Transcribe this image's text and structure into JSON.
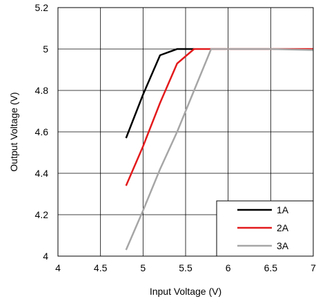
{
  "chart_data": {
    "type": "line",
    "title": "",
    "xlabel": "Input Voltage (V)",
    "ylabel": "Output Voltage (V)",
    "xlim": [
      4,
      7
    ],
    "ylim": [
      4,
      5.2
    ],
    "x_ticks": [
      "4",
      "4.5",
      "5",
      "5.5",
      "6",
      "6.5",
      "7"
    ],
    "y_ticks": [
      "4",
      "4.2",
      "4.4",
      "4.6",
      "4.8",
      "5",
      "5.2"
    ],
    "grid": true,
    "legend": "bottom-right",
    "series": [
      {
        "name": "1A",
        "color": "#000000",
        "x": [
          4.8,
          5.0,
          5.2,
          5.4,
          5.6
        ],
        "y": [
          4.57,
          4.78,
          4.97,
          5.0,
          5.0
        ]
      },
      {
        "name": "2A",
        "color": "#e31a1c",
        "x": [
          4.8,
          5.0,
          5.2,
          5.4,
          5.6,
          5.8,
          6.0,
          6.5,
          7.0
        ],
        "y": [
          4.34,
          4.53,
          4.74,
          4.93,
          5.0,
          5.0,
          5.0,
          5.0,
          5.0
        ]
      },
      {
        "name": "3A",
        "color": "#a6a6a6",
        "x": [
          4.8,
          5.0,
          5.2,
          5.4,
          5.6,
          5.8,
          6.0,
          6.5,
          7.0
        ],
        "y": [
          4.03,
          4.22,
          4.42,
          4.6,
          4.8,
          5.0,
          5.0,
          5.0,
          4.995
        ]
      }
    ]
  }
}
